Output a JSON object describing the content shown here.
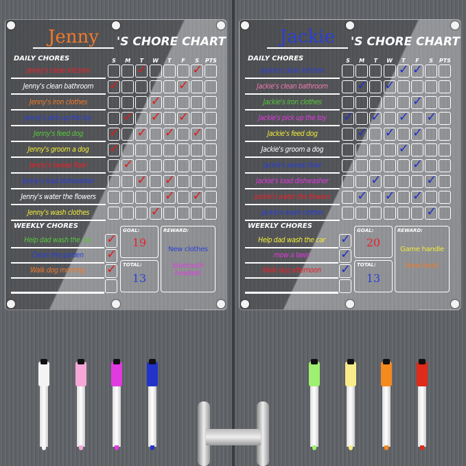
{
  "days": [
    "S",
    "M",
    "T",
    "W",
    "T",
    "F",
    "S",
    "PTS"
  ],
  "labels": {
    "title_suffix": "'S CHORE CHART",
    "daily": "DAILY CHORES",
    "weekly": "WEEKLY CHORES",
    "goal": "GOAL:",
    "total": "TOTAL:",
    "reward": "REWARD:"
  },
  "boards": [
    {
      "name": "Jenny",
      "name_color": "#f07a2a",
      "check_color": "#e01b1b",
      "daily": [
        {
          "text": "Jenny's clean kitchen",
          "color": "#e8222a",
          "checks": [
            2,
            6
          ]
        },
        {
          "text": "Jenny's clean bathroom",
          "color": "#ffffff",
          "checks": [
            0,
            5
          ]
        },
        {
          "text": "Jenny's iron clothes",
          "color": "#f07a2a",
          "checks": [
            3
          ]
        },
        {
          "text": "Jenny's pick up the toy",
          "color": "#2a3fd8",
          "checks": [
            1,
            3,
            5
          ]
        },
        {
          "text": "Jenny's feed dog",
          "color": "#56c83a",
          "checks": [
            0,
            2,
            4,
            6
          ]
        },
        {
          "text": "Jenny's groom a dog",
          "color": "#f2ec3a",
          "checks": [
            0
          ]
        },
        {
          "text": "Jenny's sweep floor",
          "color": "#e8222a",
          "checks": [
            1
          ]
        },
        {
          "text": "Jenny's load dishwasher",
          "color": "#2a3fd8",
          "checks": [
            2,
            4
          ]
        },
        {
          "text": "Jenny's water the flowers",
          "color": "#ffffff",
          "checks": [
            4,
            6
          ]
        },
        {
          "text": "Jenny's wash clothes",
          "color": "#f2ec3a",
          "checks": [
            3
          ]
        }
      ],
      "weekly": [
        {
          "text": "Help dad wash the car",
          "color": "#56c83a",
          "checked": true
        },
        {
          "text": "Clean the garden",
          "color": "#2a3fd8",
          "checked": true
        },
        {
          "text": "Walk dog morning",
          "color": "#f07a2a",
          "checked": true
        },
        {
          "text": "",
          "color": "#fff",
          "checked": false
        }
      ],
      "goal": "19",
      "goal_color": "#e8222a",
      "total": "13",
      "total_color": "#2a3fd8",
      "rewards": [
        {
          "text": "New clothes",
          "color": "#2a3fd8"
        },
        {
          "text": "bluetooth headset",
          "color": "#e03ae0"
        }
      ]
    },
    {
      "name": "Jackie",
      "name_color": "#2a3fd8",
      "check_color": "#1f2fc8",
      "daily": [
        {
          "text": "Jackie's clean kitchen",
          "color": "#2a3fd8",
          "checks": [
            4,
            5
          ]
        },
        {
          "text": "Jackie's clean bathroom",
          "color": "#f07ab0",
          "checks": [
            1,
            3
          ]
        },
        {
          "text": "Jackie's iron clothes",
          "color": "#56c83a",
          "checks": [
            5
          ]
        },
        {
          "text": "Jackie's pick up the toy",
          "color": "#e03ae0",
          "checks": [
            0,
            2,
            4,
            6
          ]
        },
        {
          "text": "Jackie's feed dog",
          "color": "#f2ec3a",
          "checks": [
            1,
            3,
            5
          ]
        },
        {
          "text": "Jackie's groom a dog",
          "color": "#ffffff",
          "checks": [
            4
          ]
        },
        {
          "text": "Jackie's sweep floor",
          "color": "#2a3fd8",
          "checks": [
            5
          ]
        },
        {
          "text": "Jackie's load dishwasher",
          "color": "#e03ae0",
          "checks": [
            2,
            6
          ]
        },
        {
          "text": "Jackie's water the flowers",
          "color": "#e8222a",
          "checks": [
            1,
            3,
            5
          ]
        },
        {
          "text": "Jackie's wash clothes",
          "color": "#2a3fd8",
          "checks": [
            6
          ]
        }
      ],
      "weekly": [
        {
          "text": "Help dad wash the car",
          "color": "#f2ec3a",
          "checked": true
        },
        {
          "text": "mow a lawn",
          "color": "#e03ae0",
          "checked": true
        },
        {
          "text": "Walk dog afternoon",
          "color": "#e8222a",
          "checked": true
        },
        {
          "text": "",
          "color": "#fff",
          "checked": false
        }
      ],
      "goal": "20",
      "goal_color": "#e8222a",
      "total": "13",
      "total_color": "#2a3fd8",
      "rewards": [
        {
          "text": "Game handle",
          "color": "#f2ec3a"
        },
        {
          "text": "New book",
          "color": "#f07a2a"
        }
      ]
    }
  ],
  "markers": [
    "#f4f4f4",
    "#f5a8d8",
    "#e03ae0",
    "#2233cc",
    "#9ef070",
    "#f8ec8a",
    "#f58a1f",
    "#e02a1a"
  ]
}
